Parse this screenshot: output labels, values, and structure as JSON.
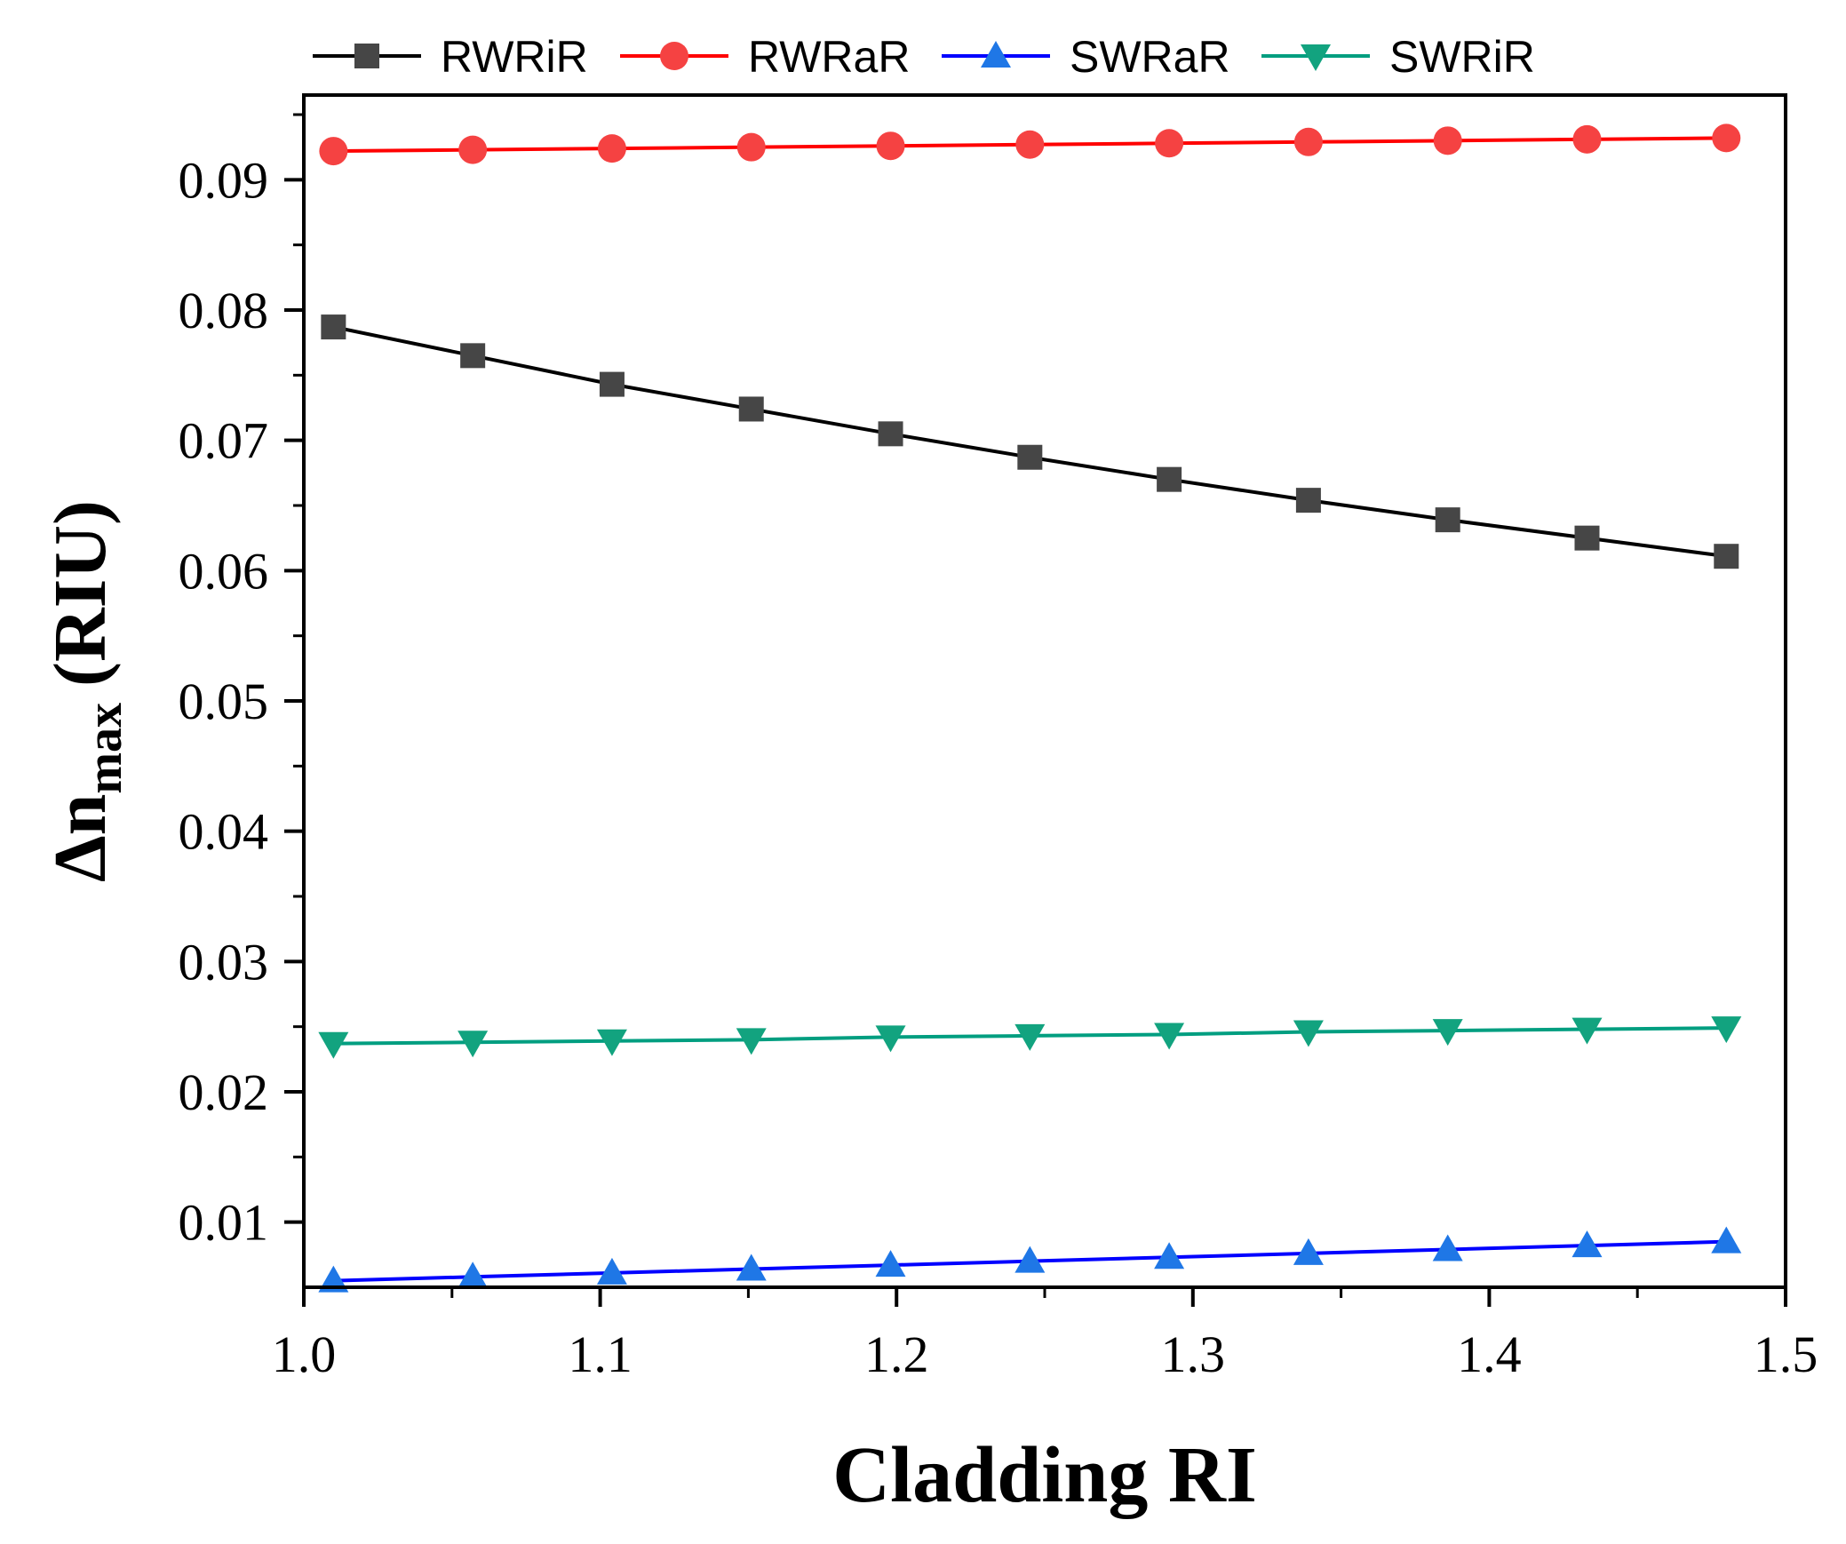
{
  "chart_data": {
    "type": "line",
    "title": "",
    "xlabel": "Cladding RI",
    "ylabel": {
      "symbol": "Δn",
      "subscript": "max",
      "unit": "(RIU)"
    },
    "xlim": [
      1.0,
      1.5
    ],
    "ylim": [
      0.005,
      0.0965
    ],
    "x_ticks": [
      1.0,
      1.1,
      1.2,
      1.3,
      1.4,
      1.5
    ],
    "x_tick_labels": [
      "1.0",
      "1.1",
      "1.2",
      "1.3",
      "1.4",
      "1.5"
    ],
    "y_ticks": [
      0.01,
      0.02,
      0.03,
      0.04,
      0.05,
      0.06,
      0.07,
      0.08,
      0.09
    ],
    "y_tick_labels": [
      "0.01",
      "0.02",
      "0.03",
      "0.04",
      "0.05",
      "0.06",
      "0.07",
      "0.08",
      "0.09"
    ],
    "grid": false,
    "legend_position": "top, above plot",
    "x": [
      1.01,
      1.057,
      1.104,
      1.151,
      1.198,
      1.245,
      1.292,
      1.339,
      1.386,
      1.433,
      1.48
    ],
    "series": [
      {
        "name": "RWRiR",
        "color": "#000000",
        "marker_color": "#464646",
        "marker": "square",
        "values": [
          0.0787,
          0.0765,
          0.0743,
          0.0724,
          0.0705,
          0.0687,
          0.067,
          0.0654,
          0.0639,
          0.0625,
          0.0611
        ]
      },
      {
        "name": "RWRaR",
        "color": "#ff0000",
        "marker_color": "#f54242",
        "marker": "circle",
        "values": [
          0.0922,
          0.0923,
          0.0924,
          0.0925,
          0.0926,
          0.0927,
          0.0928,
          0.0929,
          0.093,
          0.0931,
          0.0932
        ]
      },
      {
        "name": "SWRaR",
        "color": "#0000ff",
        "marker_color": "#1f77e6",
        "marker": "triangle-up",
        "values": [
          0.0055,
          0.0058,
          0.0061,
          0.0064,
          0.0067,
          0.007,
          0.0073,
          0.0076,
          0.0079,
          0.0082,
          0.0085
        ]
      },
      {
        "name": "SWRiR",
        "color": "#009e80",
        "marker_color": "#12a37f",
        "marker": "triangle-down",
        "values": [
          0.0237,
          0.0238,
          0.0239,
          0.024,
          0.0242,
          0.0243,
          0.0244,
          0.0246,
          0.0247,
          0.0248,
          0.0249
        ]
      }
    ]
  }
}
